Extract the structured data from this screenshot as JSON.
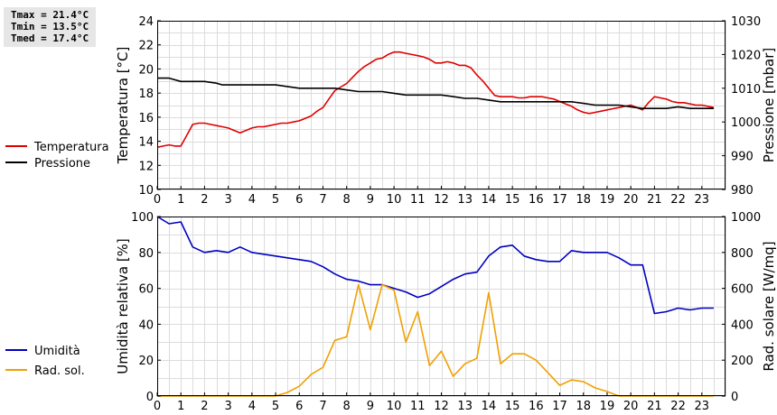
{
  "stats": {
    "tmax": "Tmax = 21.4°C",
    "tmin": "Tmin = 13.5°C",
    "tmed": "Tmed = 17.4°C"
  },
  "chart_data": [
    {
      "type": "line",
      "xlim": [
        0,
        24
      ],
      "x_ticks": [
        0,
        1,
        2,
        3,
        4,
        5,
        6,
        7,
        8,
        9,
        10,
        11,
        12,
        13,
        14,
        15,
        16,
        17,
        18,
        19,
        20,
        21,
        22,
        23
      ],
      "ylabel": "Temperatura [°C]",
      "ylim": [
        10,
        24
      ],
      "y_ticks": [
        10,
        12,
        14,
        16,
        18,
        20,
        22,
        24
      ],
      "y2label": "Pressione [mbar]",
      "y2lim": [
        980,
        1030
      ],
      "y2_ticks": [
        980,
        990,
        1000,
        1010,
        1020,
        1030
      ],
      "grid": true,
      "legend_position": "left",
      "series": [
        {
          "name": "Temperatura",
          "axis": "left",
          "color": "#e00000",
          "x": [
            0,
            0.25,
            0.5,
            0.75,
            1,
            1.25,
            1.5,
            1.75,
            2,
            2.25,
            2.5,
            2.75,
            3,
            3.25,
            3.5,
            3.75,
            4,
            4.25,
            4.5,
            4.75,
            5,
            5.25,
            5.5,
            5.75,
            6,
            6.25,
            6.5,
            6.75,
            7,
            7.25,
            7.5,
            7.75,
            8,
            8.25,
            8.5,
            8.75,
            9,
            9.25,
            9.5,
            9.75,
            10,
            10.25,
            10.5,
            10.75,
            11,
            11.25,
            11.5,
            11.75,
            12,
            12.25,
            12.5,
            12.75,
            13,
            13.25,
            13.5,
            13.75,
            14,
            14.25,
            14.5,
            14.75,
            15,
            15.25,
            15.5,
            15.75,
            16,
            16.25,
            16.5,
            16.75,
            17,
            17.25,
            17.5,
            17.75,
            18,
            18.25,
            18.5,
            18.75,
            19,
            19.25,
            19.5,
            19.75,
            20,
            20.25,
            20.5,
            20.75,
            21,
            21.25,
            21.5,
            21.75,
            22,
            22.25,
            22.5,
            22.75,
            23,
            23.25,
            23.5
          ],
          "values": [
            13.5,
            13.6,
            13.7,
            13.6,
            13.6,
            14.5,
            15.4,
            15.5,
            15.5,
            15.4,
            15.3,
            15.2,
            15.1,
            14.9,
            14.7,
            14.9,
            15.1,
            15.2,
            15.2,
            15.3,
            15.4,
            15.5,
            15.5,
            15.6,
            15.7,
            15.9,
            16.1,
            16.5,
            16.8,
            17.5,
            18.2,
            18.5,
            18.8,
            19.3,
            19.8,
            20.2,
            20.5,
            20.8,
            20.9,
            21.2,
            21.4,
            21.4,
            21.3,
            21.2,
            21.1,
            21.0,
            20.8,
            20.5,
            20.5,
            20.6,
            20.5,
            20.3,
            20.3,
            20.1,
            19.5,
            19.0,
            18.4,
            17.8,
            17.7,
            17.7,
            17.7,
            17.6,
            17.6,
            17.7,
            17.7,
            17.7,
            17.6,
            17.5,
            17.3,
            17.1,
            16.9,
            16.6,
            16.4,
            16.3,
            16.4,
            16.5,
            16.6,
            16.7,
            16.8,
            16.9,
            17.0,
            16.8,
            16.6,
            17.2,
            17.7,
            17.6,
            17.5,
            17.3,
            17.2,
            17.2,
            17.1,
            17.0,
            17.0,
            16.9,
            16.8
          ]
        },
        {
          "name": "Pressione",
          "axis": "right",
          "color": "#000000",
          "x": [
            0,
            0.5,
            1,
            1.5,
            2,
            2.5,
            2.75,
            3,
            3.5,
            4,
            4.5,
            5,
            5.5,
            6,
            6.5,
            7,
            7.5,
            8,
            8.5,
            9,
            9.5,
            10,
            10.5,
            11,
            11.5,
            12,
            12.5,
            13,
            13.5,
            14,
            14.5,
            15,
            15.5,
            16,
            16.5,
            17,
            17.5,
            18,
            18.5,
            19,
            19.5,
            20,
            20.5,
            21,
            21.5,
            22,
            22.5,
            23,
            23.5
          ],
          "values": [
            1013,
            1013,
            1012,
            1012,
            1012,
            1011.5,
            1011,
            1011,
            1011,
            1011,
            1011,
            1011,
            1010.5,
            1010,
            1010,
            1010,
            1010,
            1009.5,
            1009,
            1009,
            1009,
            1008.5,
            1008,
            1008,
            1008,
            1008,
            1007.5,
            1007,
            1007,
            1006.5,
            1006,
            1006,
            1006,
            1006,
            1006,
            1006,
            1006,
            1005.5,
            1005,
            1005,
            1005,
            1004.5,
            1004,
            1004,
            1004,
            1004.5,
            1004,
            1004,
            1004
          ]
        }
      ]
    },
    {
      "type": "line",
      "xlim": [
        0,
        24
      ],
      "x_ticks": [
        0,
        1,
        2,
        3,
        4,
        5,
        6,
        7,
        8,
        9,
        10,
        11,
        12,
        13,
        14,
        15,
        16,
        17,
        18,
        19,
        20,
        21,
        22,
        23
      ],
      "ylabel": "Umidità relativa [%]",
      "ylim": [
        0,
        100
      ],
      "y_ticks": [
        0,
        20,
        40,
        60,
        80,
        100
      ],
      "y2label": "Rad. solare [W/mq]",
      "y2lim": [
        0,
        1000
      ],
      "y2_ticks": [
        0,
        200,
        400,
        600,
        800,
        1000
      ],
      "grid": true,
      "legend_position": "left",
      "series": [
        {
          "name": "Umidità",
          "axis": "left",
          "color": "#0000c0",
          "x": [
            0,
            0.5,
            1,
            1.5,
            2,
            2.5,
            3,
            3.5,
            4,
            4.5,
            5,
            5.5,
            6,
            6.5,
            7,
            7.5,
            8,
            8.5,
            9,
            9.5,
            10,
            10.5,
            11,
            11.5,
            12,
            12.5,
            13,
            13.5,
            14,
            14.5,
            15,
            15.5,
            16,
            16.5,
            17,
            17.5,
            18,
            18.5,
            19,
            19.5,
            20,
            20.5,
            21,
            21.5,
            22,
            22.5,
            23,
            23.5
          ],
          "values": [
            100,
            96,
            97,
            83,
            80,
            81,
            80,
            83,
            80,
            79,
            78,
            77,
            76,
            75,
            72,
            68,
            65,
            64,
            62,
            62,
            60,
            58,
            55,
            57,
            61,
            65,
            68,
            69,
            78,
            83,
            84,
            78,
            76,
            75,
            75,
            81,
            80,
            80,
            80,
            77,
            73,
            73,
            46,
            47,
            49,
            48,
            49,
            49
          ]
        },
        {
          "name": "Rad. sol.",
          "axis": "right",
          "color": "#f0a000",
          "x": [
            0,
            0.5,
            1,
            1.5,
            2,
            2.5,
            3,
            3.5,
            4,
            4.5,
            5,
            5.5,
            6,
            6.5,
            7,
            7.5,
            8,
            8.5,
            9,
            9.5,
            10,
            10.5,
            11,
            11.5,
            12,
            12.5,
            13,
            13.5,
            14,
            14.5,
            15,
            15.5,
            16,
            16.5,
            17,
            17.5,
            18,
            18.5,
            19,
            19.5,
            20,
            20.5,
            21,
            21.5,
            22,
            22.5,
            23,
            23.5
          ],
          "values": [
            0,
            0,
            0,
            0,
            0,
            0,
            0,
            0,
            0,
            0,
            0,
            20,
            55,
            120,
            160,
            310,
            330,
            620,
            370,
            620,
            590,
            300,
            470,
            170,
            250,
            110,
            180,
            210,
            575,
            180,
            235,
            235,
            200,
            130,
            60,
            90,
            80,
            45,
            25,
            0,
            0,
            0,
            0,
            0,
            0,
            0,
            0,
            0
          ]
        }
      ]
    }
  ]
}
